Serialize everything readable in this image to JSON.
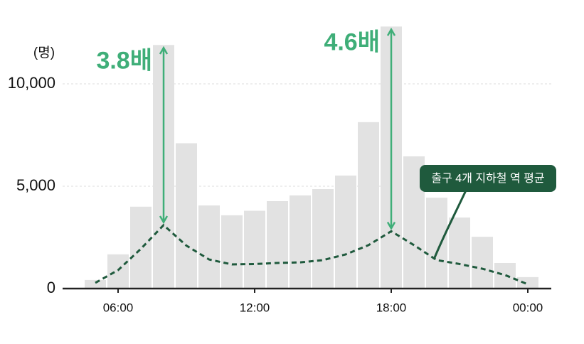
{
  "chart_data": {
    "type": "bar",
    "unit_label": "(명)",
    "categories": [
      null,
      "06:00",
      null,
      null,
      null,
      null,
      null,
      "12:00",
      null,
      null,
      null,
      null,
      null,
      "18:00",
      null,
      null,
      null,
      null,
      null,
      "00:00"
    ],
    "values": [
      420,
      1670,
      4000,
      11900,
      7100,
      4060,
      3580,
      3800,
      4270,
      4550,
      4860,
      5520,
      8130,
      12800,
      6460,
      4440,
      3470,
      2530,
      1250,
      560
    ],
    "color": "#e2e2e2",
    "line": {
      "label": "출구 4개 지하철 역 평균",
      "color": "#1f5a3d",
      "values": [
        280,
        900,
        1940,
        3100,
        2100,
        1420,
        1180,
        1200,
        1250,
        1280,
        1390,
        1670,
        2120,
        2800,
        2120,
        1390,
        1200,
        970,
        660,
        210
      ]
    },
    "annotations": [
      {
        "text": "3.8배"
      },
      {
        "text": "4.6배"
      }
    ],
    "annotation_color": "#3fae78",
    "ylim": [
      0,
      13000
    ],
    "yticks": [
      0,
      {
        "value": 5000,
        "label": "5,000"
      },
      {
        "value": 10000,
        "label": "10,000"
      }
    ],
    "grid": true
  }
}
